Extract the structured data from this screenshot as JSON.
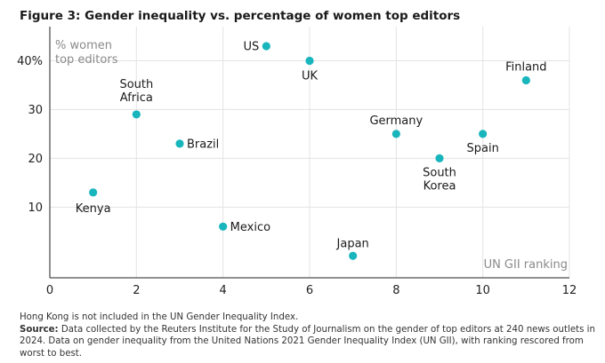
{
  "title": "Figure 3: Gender inequality vs. percentage of women top editors",
  "chart_data": {
    "type": "scatter",
    "title": "Figure 3: Gender inequality vs. percentage of women top editors",
    "xlabel": "UN GII ranking",
    "ylabel": [
      "% women",
      "top editors"
    ],
    "xlim": [
      0,
      12
    ],
    "ylim": [
      -4.5,
      47
    ],
    "xticks": [
      0,
      2,
      4,
      6,
      8,
      10,
      12
    ],
    "xtick_labels": [
      "0",
      "2",
      "4",
      "6",
      "8",
      "10",
      "12"
    ],
    "yticks": [
      10,
      20,
      30,
      40
    ],
    "ytick_labels": [
      "10",
      "20",
      "30",
      "40%"
    ],
    "grid": true,
    "marker_color": "#19b5bd",
    "points": [
      {
        "label": [
          "Kenya"
        ],
        "x": 1,
        "y": 13
      },
      {
        "label": [
          "South",
          "Africa"
        ],
        "x": 2,
        "y": 29
      },
      {
        "label": [
          "Brazil"
        ],
        "x": 3,
        "y": 23
      },
      {
        "label": [
          "Mexico"
        ],
        "x": 4,
        "y": 6
      },
      {
        "label": [
          "US"
        ],
        "x": 5,
        "y": 43
      },
      {
        "label": [
          "UK"
        ],
        "x": 6,
        "y": 40
      },
      {
        "label": [
          "Japan"
        ],
        "x": 7,
        "y": 0
      },
      {
        "label": [
          "Germany"
        ],
        "x": 8,
        "y": 25
      },
      {
        "label": [
          "South",
          "Korea"
        ],
        "x": 9,
        "y": 20
      },
      {
        "label": [
          "Spain"
        ],
        "x": 10,
        "y": 25
      },
      {
        "label": [
          "Finland"
        ],
        "x": 11,
        "y": 36
      }
    ]
  },
  "notes": {
    "note": "Hong Kong is not included in the UN Gender Inequality Index.",
    "source_label": "Source:",
    "source_text": " Data collected by the Reuters Institute for the Study of Journalism on the gender of top editors at 240 news outlets in 2024. Data on gender inequality from the United Nations 2021 Gender Inequality Index (UN GII), with ranking rescored from worst to best."
  }
}
